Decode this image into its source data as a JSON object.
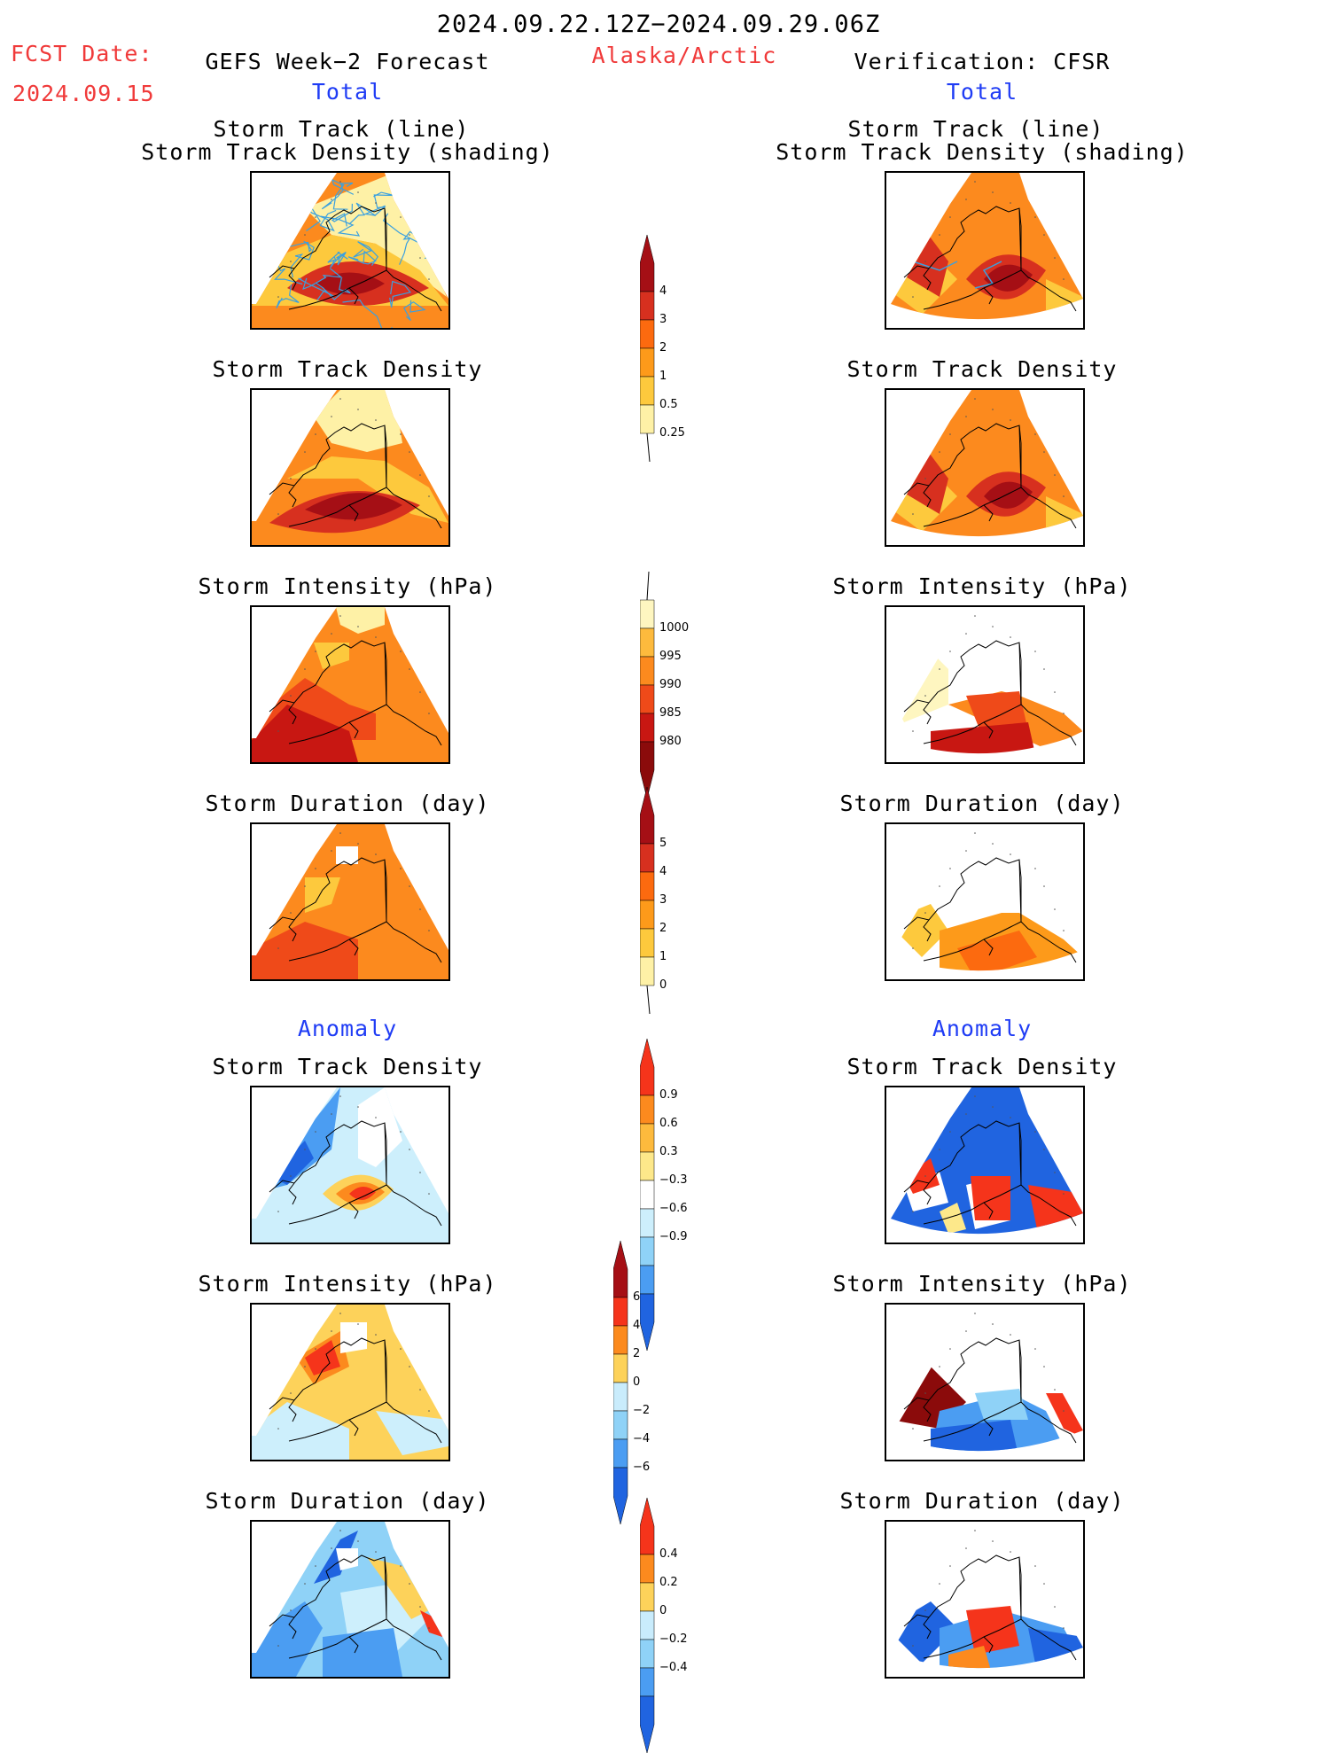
{
  "header": {
    "date_range": "2024.09.22.12Z−2024.09.29.06Z",
    "fcst_label": "FCST Date:",
    "fcst_date": "2024.09.15",
    "left_title": "GEFS Week−2 Forecast",
    "region": "Alaska/Arctic",
    "right_title": "Verification: CFSR"
  },
  "sections": {
    "total": "Total",
    "anomaly": "Anomaly"
  },
  "panels": {
    "track_line": "Storm Track (line)",
    "track_shading": "Storm Track Density (shading)",
    "density": "Storm Track Density",
    "intensity": "Storm Intensity (hPa)",
    "duration": "Storm Duration (day)"
  },
  "colorbars": {
    "density": {
      "labels": [
        "4",
        "3",
        "2",
        "1",
        "0.5",
        "0.25"
      ],
      "colors": [
        "#a50f15",
        "#d7301f",
        "#fc6a0f",
        "#fd9a1a",
        "#fdc93d",
        "#fef1a6"
      ]
    },
    "intensity": {
      "labels": [
        "1000",
        "995",
        "990",
        "985",
        "980"
      ],
      "colors": [
        "#fef6c0",
        "#fdba3d",
        "#fc8a1e",
        "#ef4a19",
        "#c81712",
        "#8b0b0b"
      ]
    },
    "duration": {
      "labels": [
        "5",
        "4",
        "3",
        "2",
        "1",
        "0"
      ],
      "colors": [
        "#a50f15",
        "#d7301f",
        "#fc6a0f",
        "#fd9a1a",
        "#fdc93d",
        "#fef1a6"
      ]
    },
    "density_anom": {
      "labels": [
        "0.9",
        "0.6",
        "0.3",
        "−0.3",
        "−0.6",
        "−0.9"
      ],
      "colors": [
        "#f5341b",
        "#fc8a1e",
        "#fdba3d",
        "#fde88a",
        "#ffffff",
        "#cdeffc",
        "#8fd2f7",
        "#4b9df2",
        "#2064e0"
      ]
    },
    "intensity_anom": {
      "labels": [
        "6",
        "4",
        "2",
        "0",
        "−2",
        "−4",
        "−6"
      ],
      "colors": [
        "#a50f15",
        "#f5341b",
        "#fc8a1e",
        "#fdd25a",
        "#c9ecfc",
        "#8fd2f7",
        "#4b9df2",
        "#2064e0"
      ]
    },
    "duration_anom": {
      "labels": [
        "0.4",
        "0.2",
        "0",
        "−0.2",
        "−0.4"
      ],
      "colors": [
        "#f5341b",
        "#fc8a1e",
        "#fdd25a",
        "#c9ecfc",
        "#8fd2f7",
        "#4b9df2",
        "#2064e0"
      ]
    }
  }
}
